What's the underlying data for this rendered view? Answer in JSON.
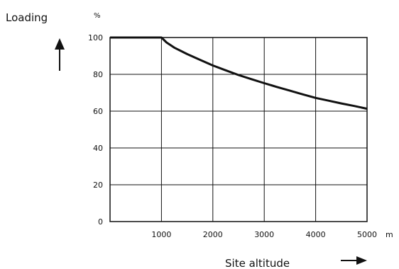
{
  "chart_data": {
    "type": "line",
    "ylabel": "Loading",
    "y_unit": "%",
    "xlabel": "Site altitude",
    "x_unit": "m",
    "xlim": [
      0,
      5000
    ],
    "ylim": [
      0,
      100
    ],
    "x_ticks": [
      0,
      1000,
      2000,
      3000,
      4000,
      5000
    ],
    "x_tick_labels": [
      "1000",
      "2000",
      "3000",
      "4000",
      "5000"
    ],
    "y_ticks": [
      0,
      20,
      40,
      60,
      80,
      100
    ],
    "y_tick_labels": [
      "0",
      "20",
      "40",
      "60",
      "80",
      "100"
    ],
    "grid": true,
    "series": [
      {
        "x": [
          0,
          1000,
          1100,
          1250,
          1500,
          1750,
          2000,
          2250,
          2500,
          2750,
          3000,
          3250,
          3500,
          3750,
          4000,
          4250,
          4500,
          4750,
          5000
        ],
        "y": [
          100,
          100,
          97.3,
          94.5,
          91,
          87.9,
          84.8,
          82.2,
          79.6,
          77.4,
          75.2,
          73.1,
          71.1,
          69.1,
          67.2,
          65.7,
          64.2,
          62.8,
          61.3
        ]
      }
    ]
  }
}
